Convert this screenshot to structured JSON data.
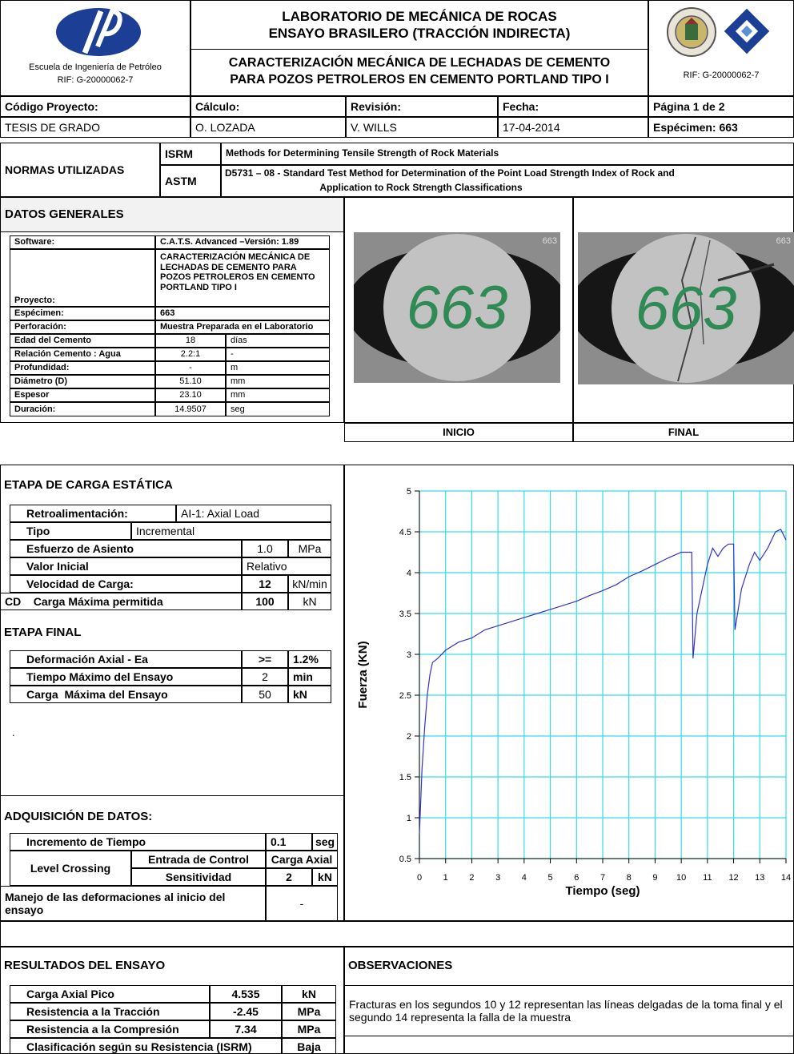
{
  "header": {
    "school": "Escuela de Ingeniería de Petróleo",
    "rif_left": "RIF: G-20000062-7",
    "title": [
      "LABORATORIO DE MECÁNICA DE ROCAS",
      "ENSAYO BRASILERO (TRACCIÓN INDIRECTA)"
    ],
    "subtitle": [
      "CARACTERIZACIÓN MECÁNICA DE LECHADAS DE CEMENTO",
      "PARA POZOS PETROLEROS EN CEMENTO PORTLAND TIPO I"
    ],
    "rif_right": "RIF: G-20000062-7"
  },
  "info": {
    "labels": [
      "Código Proyecto:",
      "Cálculo:",
      "Revisión:",
      "Fecha:",
      "Página 1 de 2"
    ],
    "values": [
      "TESIS DE GRADO",
      "O. LOZADA",
      "V. WILLS",
      "17-04-2014",
      "Espécimen: 663"
    ]
  },
  "normas": {
    "title": "NORMAS UTILIZADAS",
    "rows": [
      [
        "ISRM",
        "Methods for Determining Tensile Strength of Rock Materials"
      ],
      [
        "ASTM",
        "D5731 – 08 -  Standard Test Method for Determination of the Point Load Strength Index of Rock and",
        "Application to Rock Strength Classifications"
      ]
    ]
  },
  "datos_generales": {
    "title": "DATOS GENERALES",
    "rows": [
      [
        "Software:",
        "C.A.T.S. Advanced –Versión: 1.89"
      ],
      [
        "Proyecto:",
        "CARACTERIZACIÓN MECÁNICA DE LECHADAS DE CEMENTO PARA POZOS PETROLEROS EN CEMENTO PORTLAND TIPO I"
      ],
      [
        "Espécimen:",
        "663"
      ],
      [
        "Perforación:",
        "Muestra Preparada en el Laboratorio"
      ],
      [
        "Edad del Cemento",
        "18",
        "días"
      ],
      [
        "Relación Cemento : Agua",
        "2.2:1",
        "-"
      ],
      [
        "Profundidad:",
        "-",
        "m"
      ],
      [
        "Diámetro (D)",
        "51.10",
        "mm"
      ],
      [
        "Espesor",
        "23.10",
        "mm"
      ],
      [
        "Duración:",
        "14.9507",
        "seg"
      ]
    ]
  },
  "photos": [
    {
      "caption": "INICIO",
      "label": "663",
      "corner": "663"
    },
    {
      "caption": "FINAL",
      "label": "663",
      "corner": "663"
    }
  ],
  "etapa_carga": {
    "title": "ETAPA DE CARGA ESTÁTICA",
    "rows": [
      [
        "Retroalimentación:",
        "AI-1: Axial Load"
      ],
      [
        "Tipo",
        "Incremental"
      ],
      [
        "Esfuerzo de Asiento",
        "1.0",
        "MPa"
      ],
      [
        "Valor Inicial",
        "Relativo"
      ],
      [
        "Velocidad de Carga:",
        "12",
        "kN/min"
      ],
      [
        "CD    Carga Máxima permitida",
        "100",
        "kN"
      ]
    ]
  },
  "etapa_final": {
    "title": "ETAPA FINAL",
    "rows": [
      [
        "Deformación Axial - Ea",
        ">=",
        "1.2%"
      ],
      [
        "Tiempo Máximo del Ensayo",
        "2",
        "min"
      ],
      [
        "Carga  Máxima del Ensayo",
        "50",
        "kN"
      ]
    ]
  },
  "note": ".",
  "adquisicion": {
    "title": "ADQUISICIÓN DE DATOS:",
    "rows": [
      [
        "Incremento de Tiempo",
        "0.1",
        "seg"
      ],
      [
        "Level Crossing",
        "Entrada de Control",
        "Carga Axial"
      ],
      [
        "Sensitividad",
        "2",
        "kN"
      ],
      [
        "Manejo de las deformaciones al inicio del ensayo",
        "-"
      ]
    ]
  },
  "resultados": {
    "title": "RESULTADOS DEL ENSAYO",
    "rows": [
      [
        "Carga Axial Pico",
        "4.535",
        "kN"
      ],
      [
        "Resistencia a la Tracción",
        "-2.45",
        "MPa"
      ],
      [
        "Resistencia a la Compresión",
        "7.34",
        "MPa"
      ],
      [
        "Clasificación según su Resistencia (ISRM)",
        "Baja"
      ]
    ]
  },
  "observaciones": {
    "title": "OBSERVACIONES",
    "text": "Fracturas en los segundos 10 y 12 representan las líneas delgadas de la toma final y el segundo 14 representa la falla de la muestra"
  },
  "chart_data": {
    "type": "line",
    "x_label": "Tiempo (seg)",
    "y_label": "Fuerza (KN)",
    "x": [
      0,
      0.05,
      0.1,
      0.2,
      0.3,
      0.4,
      0.5,
      0.7,
      1,
      1.5,
      2,
      2.5,
      3,
      3.5,
      4,
      4.5,
      5,
      5.5,
      6,
      6.5,
      7,
      7.5,
      8,
      8.5,
      9,
      9.5,
      10,
      10.4,
      10.45,
      10.6,
      11,
      11.2,
      11.4,
      11.6,
      11.8,
      12,
      12.05,
      12.3,
      12.6,
      12.8,
      13,
      13.3,
      13.6,
      13.8,
      14
    ],
    "values": [
      0.8,
      1.2,
      1.6,
      2.1,
      2.5,
      2.75,
      2.9,
      2.95,
      3.05,
      3.15,
      3.2,
      3.3,
      3.35,
      3.4,
      3.45,
      3.5,
      3.55,
      3.6,
      3.65,
      3.72,
      3.78,
      3.85,
      3.95,
      4.02,
      4.1,
      4.18,
      4.25,
      4.25,
      2.95,
      3.5,
      4.1,
      4.3,
      4.2,
      4.3,
      4.35,
      4.35,
      3.3,
      3.8,
      4.1,
      4.25,
      4.15,
      4.3,
      4.5,
      4.53,
      4.4
    ],
    "color": "#3333cc",
    "xlim": [
      0,
      14
    ],
    "ylim": [
      0.5,
      5
    ],
    "xticks": [
      0,
      1,
      2,
      3,
      4,
      5,
      6,
      7,
      8,
      9,
      10,
      11,
      12,
      13,
      14
    ],
    "yticks": [
      0.5,
      1,
      1.5,
      2,
      2.5,
      3,
      3.5,
      4,
      4.5,
      5
    ],
    "grid": true,
    "grid_color": "#33dde8"
  }
}
